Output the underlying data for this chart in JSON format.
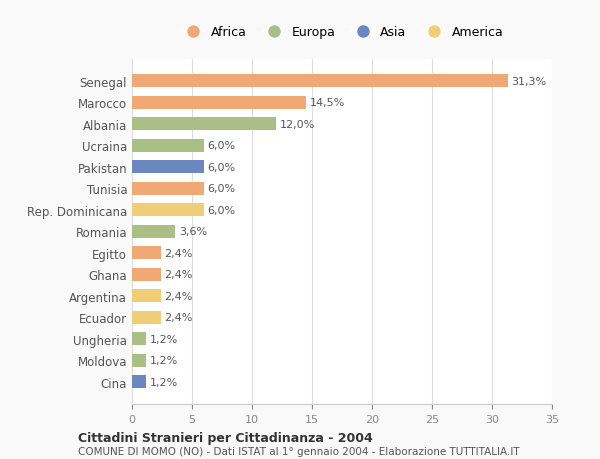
{
  "categories": [
    "Senegal",
    "Marocco",
    "Albania",
    "Ucraina",
    "Pakistan",
    "Tunisia",
    "Rep. Dominicana",
    "Romania",
    "Egitto",
    "Ghana",
    "Argentina",
    "Ecuador",
    "Ungheria",
    "Moldova",
    "Cina"
  ],
  "values": [
    31.3,
    14.5,
    12.0,
    6.0,
    6.0,
    6.0,
    6.0,
    3.6,
    2.4,
    2.4,
    2.4,
    2.4,
    1.2,
    1.2,
    1.2
  ],
  "labels": [
    "31,3%",
    "14,5%",
    "12,0%",
    "6,0%",
    "6,0%",
    "6,0%",
    "6,0%",
    "3,6%",
    "2,4%",
    "2,4%",
    "2,4%",
    "2,4%",
    "1,2%",
    "1,2%",
    "1,2%"
  ],
  "continent": [
    "Africa",
    "Africa",
    "Europa",
    "Europa",
    "Asia",
    "Africa",
    "America",
    "Europa",
    "Africa",
    "Africa",
    "America",
    "America",
    "Europa",
    "Europa",
    "Asia"
  ],
  "colors": {
    "Africa": "#F0A875",
    "Europa": "#AABF85",
    "Asia": "#6B87C0",
    "America": "#F0CE75"
  },
  "legend_order": [
    "Africa",
    "Europa",
    "Asia",
    "America"
  ],
  "title1": "Cittadini Stranieri per Cittadinanza - 2004",
  "title2": "COMUNE DI MOMO (NO) - Dati ISTAT al 1° gennaio 2004 - Elaborazione TUTTITALIA.IT",
  "xlim": [
    0,
    35
  ],
  "xticks": [
    0,
    5,
    10,
    15,
    20,
    25,
    30,
    35
  ],
  "background_color": "#f9f9f9",
  "plot_bg_color": "#ffffff"
}
